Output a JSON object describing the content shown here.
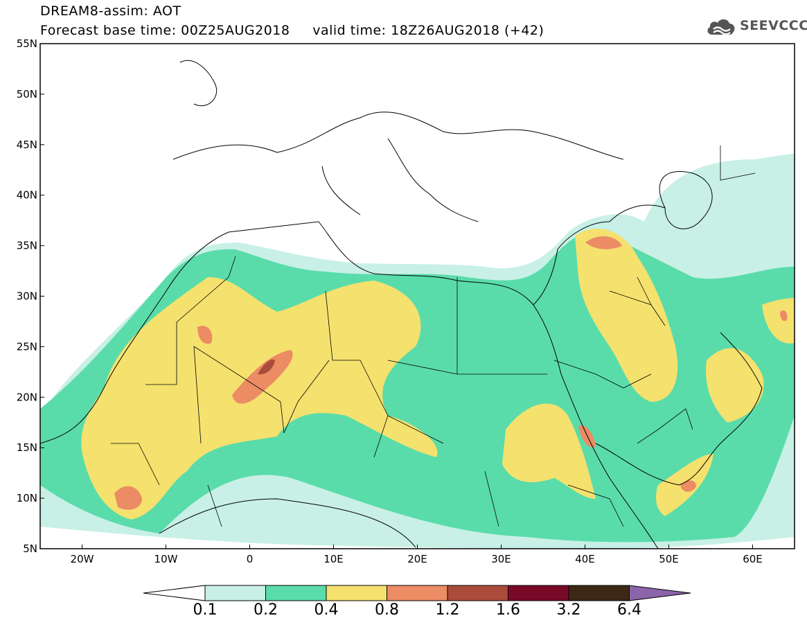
{
  "header": {
    "model_title": "DREAM8-assim: AOT",
    "forecast_base": "Forecast base time: 00Z25AUG2018",
    "valid_time": "valid time: 18Z26AUG2018 (+42)"
  },
  "logo": {
    "text": "SEEVCCC",
    "icon": "cloud-icon",
    "color": "#555555"
  },
  "map": {
    "lon_range": [
      -25,
      65
    ],
    "lat_range": [
      5,
      55
    ],
    "lat_labels": [
      "55N",
      "50N",
      "45N",
      "40N",
      "35N",
      "30N",
      "25N",
      "20N",
      "15N",
      "10N",
      "5N"
    ],
    "lon_labels": [
      "20W",
      "10W",
      "0",
      "10E",
      "20E",
      "30E",
      "40E",
      "50E",
      "60E"
    ]
  },
  "colorbar": {
    "labels": [
      "0.1",
      "0.2",
      "0.4",
      "0.8",
      "1.2",
      "1.6",
      "3.2",
      "6.4"
    ],
    "colors": [
      "#c8f0e6",
      "#5adcaa",
      "#f5e16e",
      "#eb8c64",
      "#aa4b3c",
      "#780a28",
      "#3c2814",
      "#8c64aa"
    ]
  }
}
